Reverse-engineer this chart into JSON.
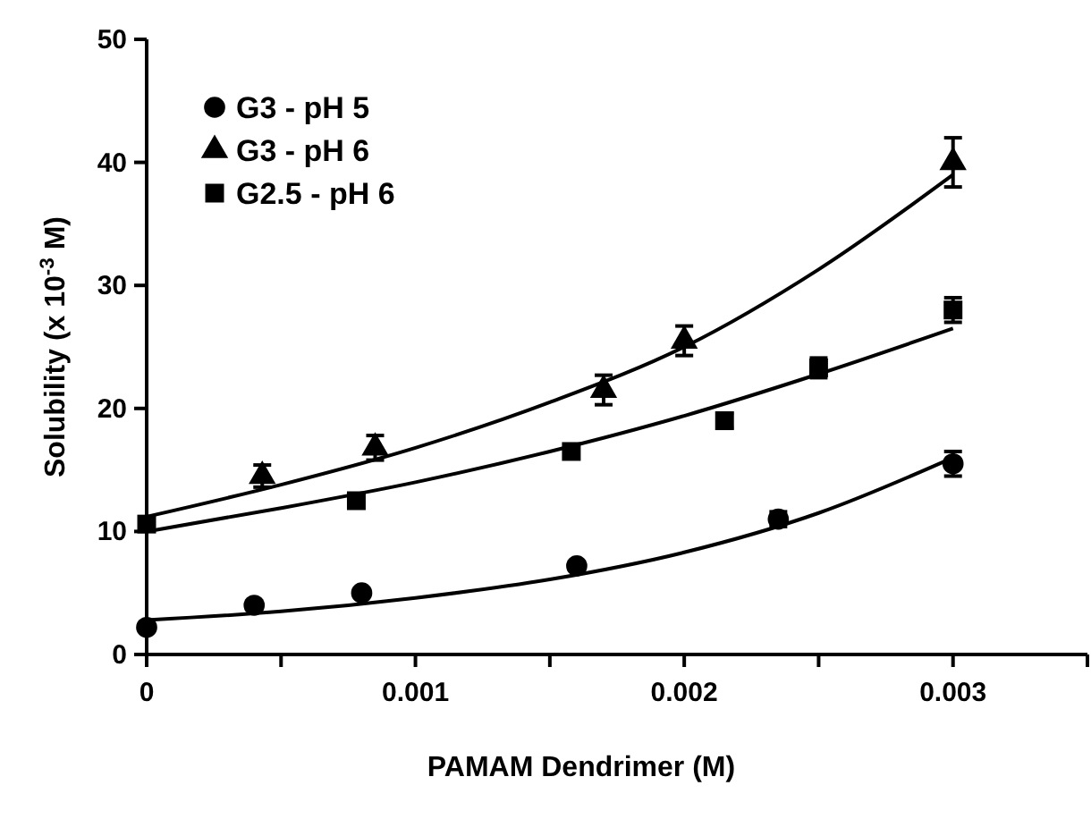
{
  "chart_data": {
    "type": "scatter",
    "xlabel": "PAMAM Dendrimer (M)",
    "ylabel": "Solubility (x 10$^{-3}$ M)",
    "xlim": [
      0,
      0.0035
    ],
    "xticks": [
      {
        "value": 0,
        "label": "0"
      },
      {
        "value": 0.0005,
        "label": null
      },
      0.001,
      {
        "value": 0.0015,
        "label": null
      },
      0.002,
      {
        "value": 0.0025,
        "label": null
      },
      0.003,
      {
        "value": 0.0035,
        "label": null
      }
    ],
    "ylim": [
      0,
      50
    ],
    "yticks": [
      0,
      10,
      20,
      30,
      40,
      50
    ],
    "legend": "top left",
    "grid": false,
    "series": [
      {
        "name": "G3 - pH 5",
        "color": "#000000",
        "marker": "circle",
        "x": [
          0,
          0.0004,
          0.0008,
          0.0016,
          0.00235,
          0.003
        ],
        "values": [
          2.2,
          4.0,
          5.0,
          7.2,
          11.0,
          15.5
        ],
        "errors": [
          null,
          null,
          null,
          null,
          0.6,
          1.0
        ]
      },
      {
        "name": "G3 - pH 6",
        "color": "#000000",
        "marker": "triangle",
        "x": [
          0.00043,
          0.00085,
          0.0017,
          0.002,
          0.003
        ],
        "values": [
          14.5,
          16.8,
          21.5,
          25.5,
          40.0
        ],
        "errors": [
          0.9,
          1.0,
          1.2,
          1.2,
          2.0
        ]
      },
      {
        "name": "G2.5 - pH 6",
        "color": "#000000",
        "marker": "square",
        "x": [
          0,
          0.00078,
          0.00158,
          0.00215,
          0.0025,
          0.003
        ],
        "values": [
          10.6,
          12.5,
          16.5,
          19.0,
          23.3,
          28.0
        ],
        "errors": [
          null,
          null,
          null,
          0.6,
          0.8,
          1.0
        ]
      },
      {
        "type": "line",
        "color": "#000000",
        "marker": "none",
        "x": [
          0,
          0.0005,
          0.001,
          0.0015,
          0.002,
          0.0025,
          0.003
        ],
        "values": [
          2.8,
          3.5,
          4.6,
          6.1,
          8.3,
          11.5,
          16.0
        ]
      },
      {
        "type": "line",
        "color": "#000000",
        "marker": "none",
        "x": [
          0,
          0.0005,
          0.001,
          0.0015,
          0.002,
          0.0025,
          0.003
        ],
        "values": [
          11.2,
          13.8,
          16.8,
          20.5,
          25.0,
          31.3,
          39.0
        ]
      },
      {
        "type": "line",
        "color": "#000000",
        "marker": "none",
        "x": [
          0,
          0.0005,
          0.001,
          0.0015,
          0.002,
          0.0025,
          0.003
        ],
        "values": [
          10.0,
          11.9,
          14.0,
          16.5,
          19.4,
          22.8,
          26.5
        ]
      }
    ]
  }
}
